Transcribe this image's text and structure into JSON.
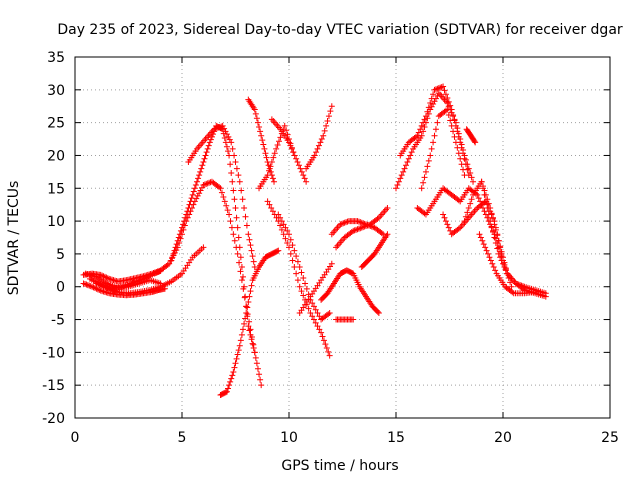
{
  "chart_data": {
    "type": "scatter",
    "title": "Day 235 of 2023, Sidereal Day-to-day VTEC variation (SDTVAR) for receiver dgar",
    "xlabel": "GPS time / hours",
    "ylabel": "SDTVAR / TECUs",
    "xlim": [
      0,
      25
    ],
    "ylim": [
      -20,
      35
    ],
    "xticks": [
      0,
      5,
      10,
      15,
      20,
      25
    ],
    "yticks": [
      -20,
      -15,
      -10,
      -5,
      0,
      5,
      10,
      15,
      20,
      25,
      30,
      35
    ],
    "grid": true,
    "marker": "plus",
    "color": "#ff0000",
    "series": [
      {
        "x": [
          0.4,
          0.8,
          1.2,
          1.6,
          2.0,
          2.4,
          2.8,
          3.2,
          3.6,
          3.9,
          4.2
        ],
        "y": [
          0.5,
          0,
          -0.6,
          -1,
          -1.2,
          -1.3,
          -1.2,
          -1,
          -0.8,
          -0.5,
          -0.3
        ]
      },
      {
        "x": [
          0.4,
          0.8,
          1.2,
          1.6,
          2.0,
          2.4,
          2.8,
          3.2,
          3.6,
          4.0,
          4.4,
          4.8,
          5.2,
          5.6,
          6.0,
          6.4,
          6.8,
          7.2,
          7.6,
          8.0,
          8.4,
          8.7
        ],
        "y": [
          1.8,
          2,
          1.8,
          1.2,
          0.8,
          1,
          1.3,
          1.6,
          2,
          2.5,
          3.5,
          6,
          10,
          13,
          15.5,
          16,
          15,
          11,
          5,
          -3,
          -10,
          -15
        ]
      },
      {
        "x": [
          0.5,
          1.0,
          1.5,
          2.0,
          2.5,
          3.0,
          3.5,
          4.0
        ],
        "y": [
          2,
          1.5,
          0.5,
          -0.2,
          0,
          0.5,
          1,
          0.5
        ]
      },
      {
        "x": [
          0.7,
          1.2,
          1.7,
          2.2,
          2.7,
          3.2,
          3.7,
          4.0
        ],
        "y": [
          1.2,
          0.4,
          -0.3,
          0,
          0.6,
          1.2,
          2,
          2.4
        ]
      },
      {
        "x": [
          1.0,
          1.5,
          2.0,
          2.5,
          3.0,
          3.5,
          4.0,
          4.5,
          5.0,
          5.5,
          6.0
        ],
        "y": [
          0.5,
          -0.2,
          -0.8,
          -1,
          -0.8,
          -0.5,
          0,
          0.8,
          2,
          4.5,
          6
        ]
      },
      {
        "x": [
          4.5,
          4.8,
          5.1,
          5.4,
          5.7,
          6.0,
          6.3,
          6.6,
          6.9,
          7.2,
          7.5,
          7.8,
          8.1,
          8.4
        ],
        "y": [
          4,
          7,
          10,
          13,
          16,
          19,
          22,
          24.5,
          24,
          20,
          12,
          3,
          -6,
          -10
        ]
      },
      {
        "x": [
          5.3,
          5.7,
          6.1,
          6.5,
          6.9,
          7.3,
          7.7,
          8.1,
          8.4
        ],
        "y": [
          19,
          21,
          22.5,
          24,
          24.5,
          22,
          16,
          8,
          3
        ]
      },
      {
        "x": [
          6.8,
          7.1,
          7.4,
          7.7,
          8.0,
          8.3,
          8.6,
          8.9,
          9.2,
          9.5
        ],
        "y": [
          -16.5,
          -16,
          -13,
          -9,
          -4,
          1,
          3,
          4.5,
          5,
          5.5
        ]
      },
      {
        "x": [
          8.1,
          8.4,
          8.7,
          9.0,
          9.3
        ],
        "y": [
          28.5,
          27,
          23,
          19,
          16
        ]
      },
      {
        "x": [
          8.6,
          9.0,
          9.4,
          9.8,
          10.2
        ],
        "y": [
          15,
          17,
          21,
          24.5,
          20.5
        ]
      },
      {
        "x": [
          9.2,
          9.6,
          10.0,
          10.4,
          10.8
        ],
        "y": [
          25.5,
          24,
          22,
          19,
          16
        ]
      },
      {
        "x": [
          9.0,
          9.5,
          10.0,
          10.5,
          11.0,
          11.5,
          11.9
        ],
        "y": [
          13,
          10,
          6,
          0,
          -4,
          -7,
          -10.5
        ]
      },
      {
        "x": [
          9.5,
          10.0,
          10.5,
          11.0,
          11.5,
          11.9
        ],
        "y": [
          11,
          8,
          3,
          -2,
          -5,
          -4
        ]
      },
      {
        "x": [
          10.5,
          11.0,
          11.5,
          12.0
        ],
        "y": [
          -4,
          -1.5,
          1,
          3.5
        ]
      },
      {
        "x": [
          10.8,
          11.2,
          11.6,
          12.0
        ],
        "y": [
          18,
          20,
          23,
          27.5
        ]
      },
      {
        "x": [
          11.5,
          11.8,
          12.1,
          12.4,
          12.7,
          13.0,
          13.3,
          13.6,
          13.9,
          14.2
        ],
        "y": [
          -2,
          -1,
          0.5,
          2,
          2.5,
          2,
          0,
          -1.5,
          -3,
          -4
        ]
      },
      {
        "x": [
          12.0,
          12.4,
          12.8,
          13.2,
          13.6,
          14.0,
          14.4
        ],
        "y": [
          8,
          9.5,
          10,
          10,
          9.5,
          9,
          8
        ]
      },
      {
        "x": [
          12.2,
          12.6,
          13.0,
          13.4,
          13.8,
          14.2,
          14.6
        ],
        "y": [
          6,
          7.5,
          8.5,
          9,
          9.5,
          10.5,
          12
        ]
      },
      {
        "x": [
          12.2,
          12.6,
          13.0
        ],
        "y": [
          -5,
          -5,
          -5
        ]
      },
      {
        "x": [
          13.4,
          13.7,
          14.0,
          14.3,
          14.6
        ],
        "y": [
          3,
          4,
          5,
          6.5,
          8
        ]
      },
      {
        "x": [
          15.0,
          15.4,
          15.8,
          16.2,
          16.6,
          17.0,
          17.4,
          17.8,
          18.2,
          18.6
        ],
        "y": [
          15,
          18,
          21,
          23,
          27,
          29.5,
          28,
          25,
          20,
          16
        ]
      },
      {
        "x": [
          15.2,
          15.6,
          16.0,
          16.4,
          16.8,
          17.2,
          17.6,
          18.0,
          18.4
        ],
        "y": [
          20,
          22,
          23,
          26,
          30,
          30.5,
          27,
          22,
          17
        ]
      },
      {
        "x": [
          16.2,
          16.6,
          17.0,
          17.4,
          17.8,
          18.2
        ],
        "y": [
          15,
          20,
          26,
          27,
          22,
          17
        ]
      },
      {
        "x": [
          16.0,
          16.4,
          16.8,
          17.2,
          17.6,
          18.0,
          18.4,
          18.8,
          19.2,
          19.6,
          20.0
        ],
        "y": [
          12,
          11,
          13,
          15,
          14,
          13,
          15,
          14,
          11,
          8,
          4
        ]
      },
      {
        "x": [
          17.2,
          17.6,
          18.0,
          18.4,
          18.8,
          19.2,
          19.6,
          20.0,
          20.4
        ],
        "y": [
          11,
          8,
          9,
          10.5,
          12,
          13,
          10,
          4,
          0
        ]
      },
      {
        "x": [
          18.2,
          18.6,
          19.0,
          19.4,
          19.8,
          20.2,
          20.6,
          21.0,
          21.5,
          22.0
        ],
        "y": [
          10,
          14,
          16,
          12,
          7,
          2,
          0.5,
          0,
          -0.5,
          -1
        ]
      },
      {
        "x": [
          19.0,
          19.4,
          19.8,
          20.2,
          20.6,
          21.0,
          21.5,
          22.0
        ],
        "y": [
          16,
          10,
          5,
          2,
          0.5,
          -0.5,
          -1,
          -1.5
        ]
      },
      {
        "x": [
          18.9,
          19.3,
          19.7,
          20.1,
          20.5,
          21.0,
          21.5
        ],
        "y": [
          8,
          5,
          2,
          0,
          -1,
          -1,
          -0.8
        ]
      },
      {
        "x": [
          18.3,
          18.5,
          18.7
        ],
        "y": [
          24,
          23,
          22
        ]
      }
    ]
  }
}
